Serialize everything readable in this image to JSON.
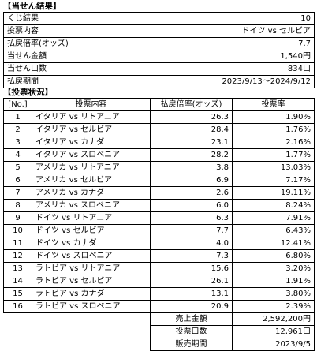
{
  "result_section": {
    "title": "【当せん結果】",
    "rows": [
      {
        "label": "くじ結果",
        "value": "10"
      },
      {
        "label": "投票内容",
        "value": "ドイツ vs セルビア"
      },
      {
        "label": "払戻倍率(オッズ)",
        "value": "7.7"
      },
      {
        "label": "当せん金額",
        "value": "1,540円"
      },
      {
        "label": "当せん口数",
        "value": "834口"
      },
      {
        "label": "払戻期間",
        "value": "2023/9/13～2024/9/12"
      }
    ]
  },
  "vote_section": {
    "title": "【投票状況】",
    "headers": [
      "[No.]",
      "投票内容",
      "払戻倍率(オッズ)",
      "投票率"
    ],
    "rows": [
      {
        "no": "1",
        "content": "イタリア vs リトアニア",
        "odds": "26.3",
        "rate": "1.90%"
      },
      {
        "no": "2",
        "content": "イタリア vs セルビア",
        "odds": "28.4",
        "rate": "1.76%"
      },
      {
        "no": "3",
        "content": "イタリア vs カナダ",
        "odds": "23.1",
        "rate": "2.16%"
      },
      {
        "no": "4",
        "content": "イタリア vs スロベニア",
        "odds": "28.2",
        "rate": "1.77%"
      },
      {
        "no": "5",
        "content": "アメリカ vs リトアニア",
        "odds": "3.8",
        "rate": "13.03%"
      },
      {
        "no": "6",
        "content": "アメリカ vs セルビア",
        "odds": "6.9",
        "rate": "7.17%"
      },
      {
        "no": "7",
        "content": "アメリカ vs カナダ",
        "odds": "2.6",
        "rate": "19.11%"
      },
      {
        "no": "8",
        "content": "アメリカ vs スロベニア",
        "odds": "6.0",
        "rate": "8.24%"
      },
      {
        "no": "9",
        "content": "ドイツ vs リトアニア",
        "odds": "6.3",
        "rate": "7.91%"
      },
      {
        "no": "10",
        "content": "ドイツ vs セルビア",
        "odds": "7.7",
        "rate": "6.43%"
      },
      {
        "no": "11",
        "content": "ドイツ vs カナダ",
        "odds": "4.0",
        "rate": "12.41%"
      },
      {
        "no": "12",
        "content": "ドイツ vs スロベニア",
        "odds": "7.3",
        "rate": "6.80%"
      },
      {
        "no": "13",
        "content": "ラトビア vs リトアニア",
        "odds": "15.6",
        "rate": "3.20%"
      },
      {
        "no": "14",
        "content": "ラトビア vs セルビア",
        "odds": "26.1",
        "rate": "1.91%"
      },
      {
        "no": "15",
        "content": "ラトビア vs カナダ",
        "odds": "13.1",
        "rate": "3.80%"
      },
      {
        "no": "16",
        "content": "ラトビア vs スロベニア",
        "odds": "20.9",
        "rate": "2.39%"
      }
    ],
    "summary": [
      {
        "label": "売上金額",
        "value": "2,592,200円"
      },
      {
        "label": "投票口数",
        "value": "12,961口"
      },
      {
        "label": "販売期間",
        "value": "2023/9/5"
      }
    ]
  }
}
